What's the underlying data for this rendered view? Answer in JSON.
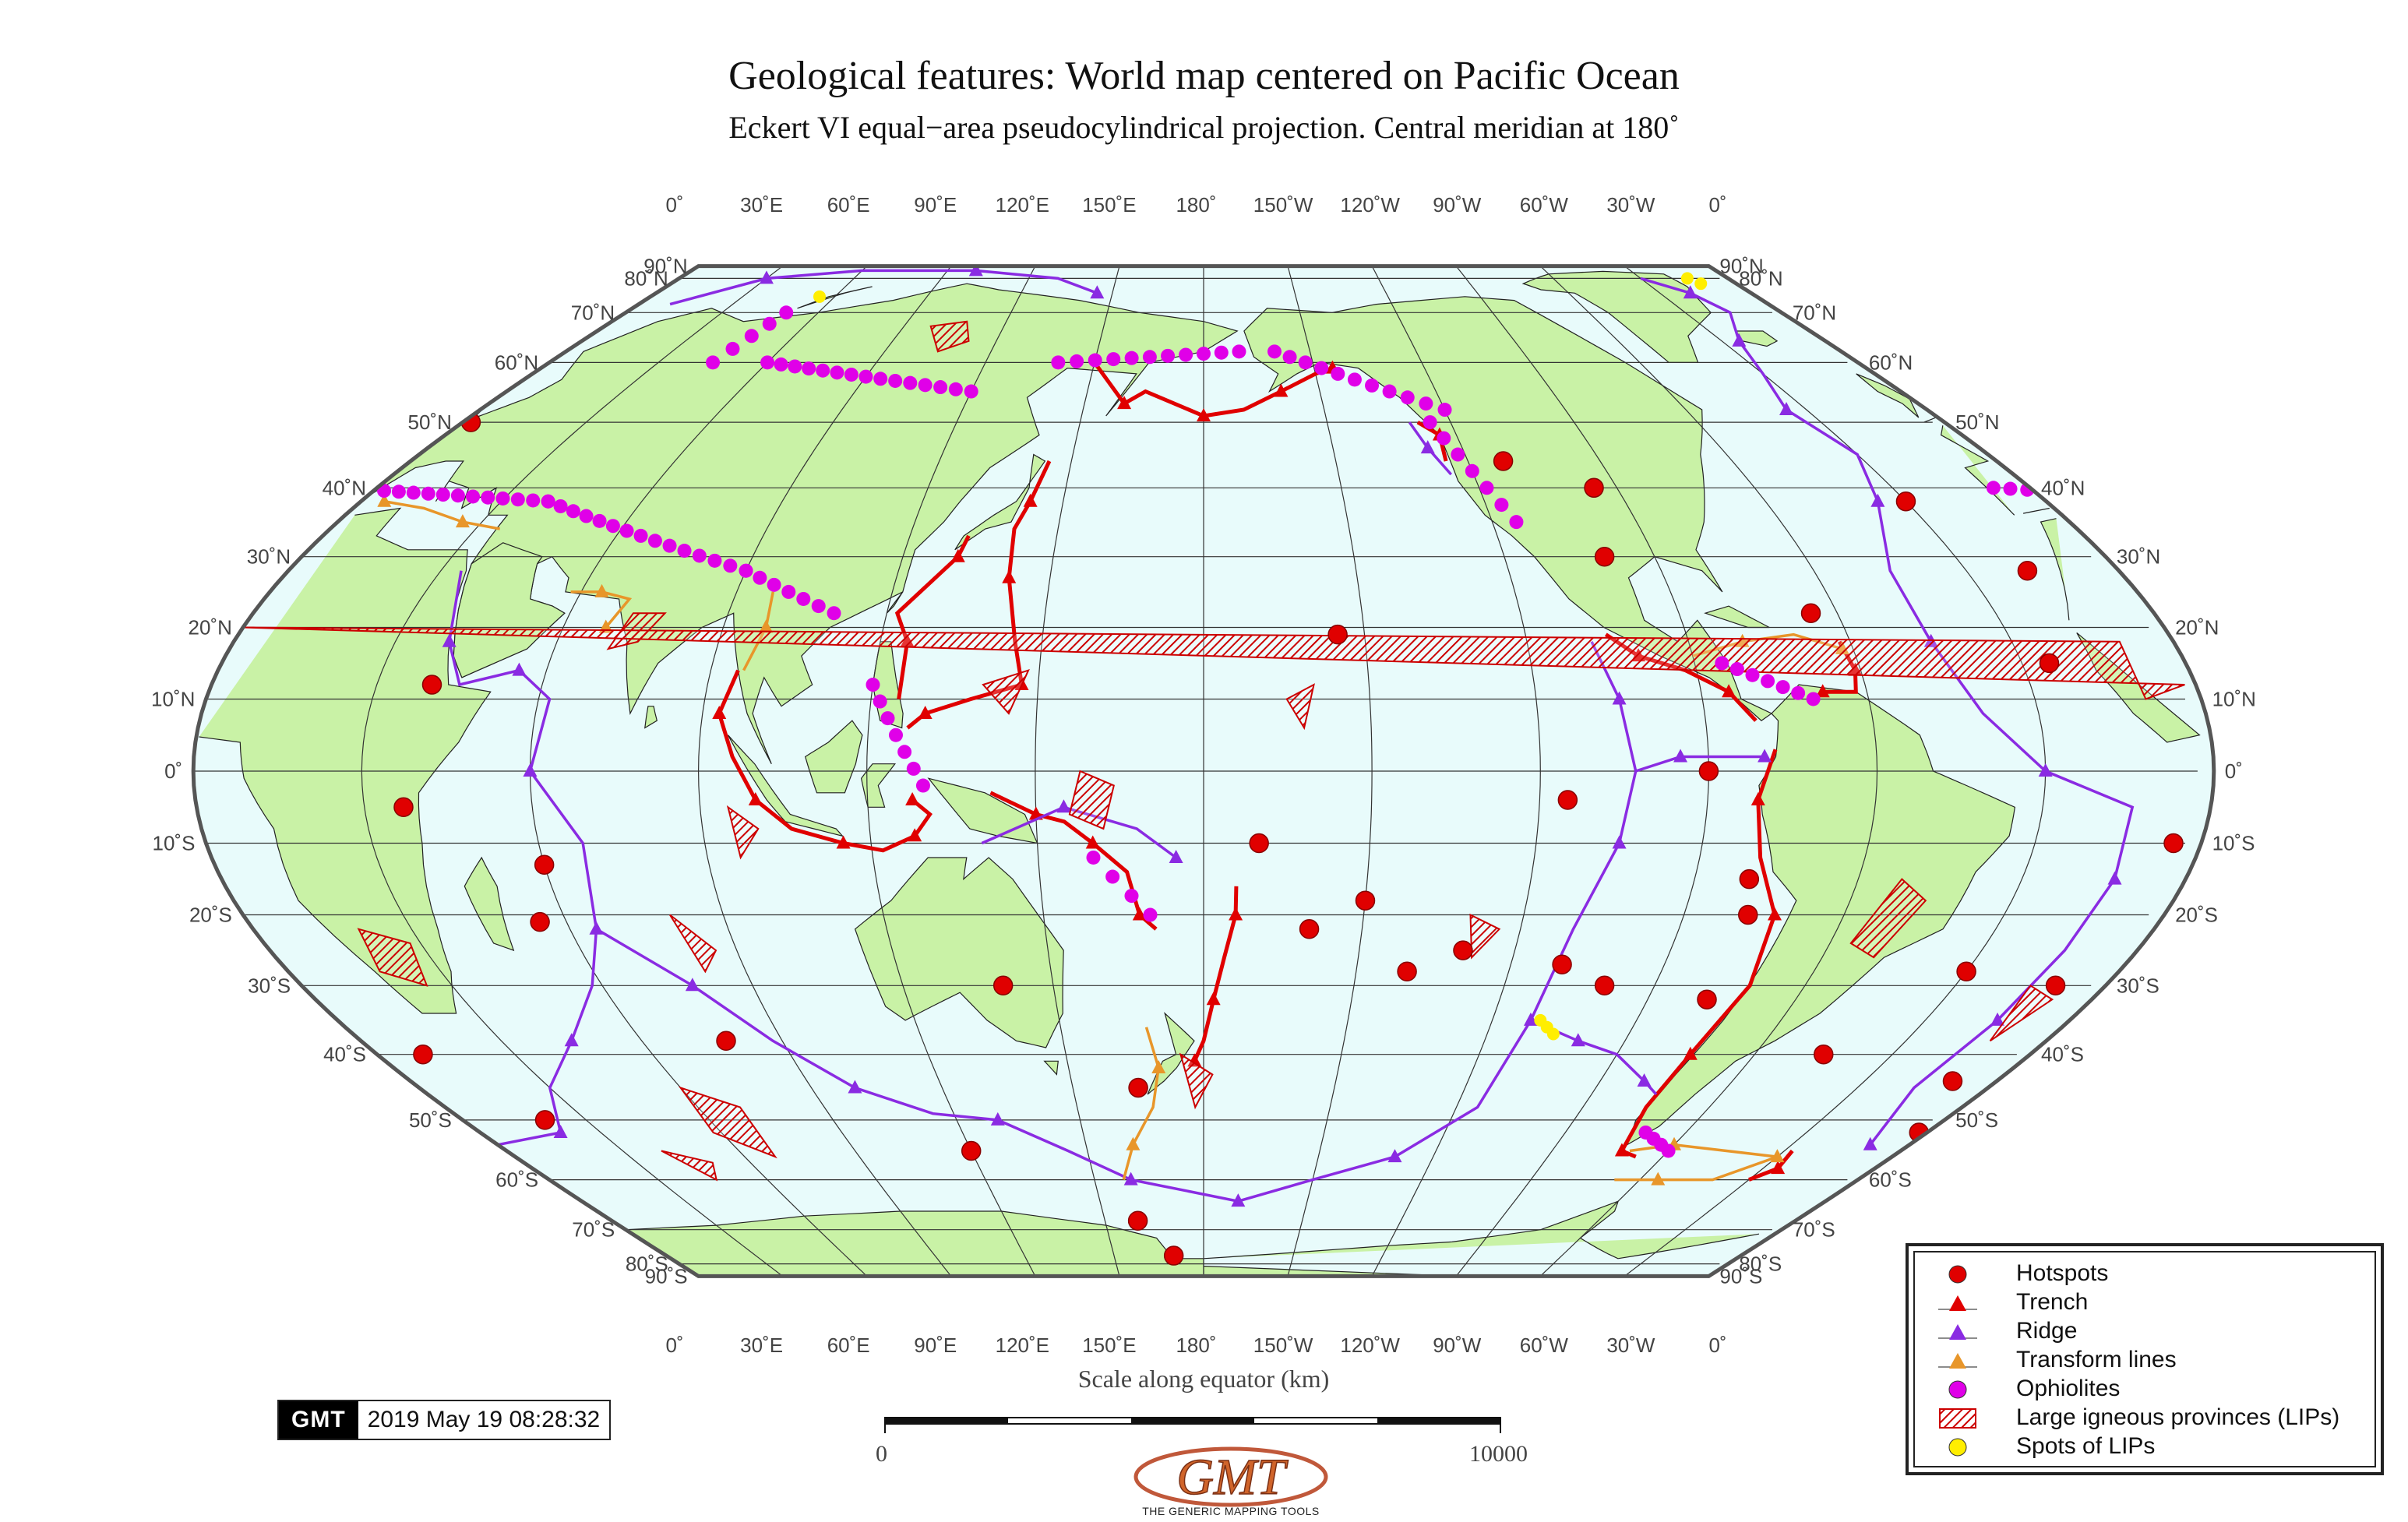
{
  "title": "Geological features: World map centered on Pacific Ocean",
  "subtitle": "Eckert VI equal−area pseudocylindrical projection. Central meridian at 180˚",
  "map": {
    "projection": "Eckert VI",
    "central_meridian": 180,
    "colors": {
      "ocean": "#e8fbfb",
      "land": "#c9f2a6",
      "coast": "#222222",
      "border": "#555555",
      "grid": "#333333",
      "hotspot": "#e00000",
      "trench": "#e00000",
      "ridge": "#8a2be2",
      "transform": "#e8962a",
      "ophiolite": "#e000e8",
      "lip": "#cc0000",
      "lip_spot": "#ffee00"
    },
    "lon_labels": [
      "0˚",
      "30˚E",
      "60˚E",
      "90˚E",
      "120˚E",
      "150˚E",
      "180˚",
      "150˚W",
      "120˚W",
      "90˚W",
      "60˚W",
      "30˚W",
      "0˚"
    ],
    "lat_labels_north": [
      "90˚N",
      "80˚N",
      "70˚N",
      "60˚N",
      "50˚N",
      "40˚N",
      "30˚N",
      "20˚N",
      "10˚N"
    ],
    "lat_label_equator": "0˚",
    "lat_labels_south": [
      "10˚S",
      "20˚S",
      "30˚S",
      "40˚S",
      "50˚S",
      "60˚S",
      "70˚S",
      "80˚S",
      "90˚S"
    ]
  },
  "legend": {
    "items": [
      {
        "label": "Hotspots",
        "symbol": "circle",
        "color": "#e00000"
      },
      {
        "label": "Trench",
        "symbol": "triangle",
        "color": "#e00000"
      },
      {
        "label": "Ridge",
        "symbol": "triangle",
        "color": "#8a2be2"
      },
      {
        "label": "Transform lines",
        "symbol": "triangle",
        "color": "#e8962a"
      },
      {
        "label": "Ophiolites",
        "symbol": "circle",
        "color": "#e000e8"
      },
      {
        "label": "Large igneous provinces (LIPs)",
        "symbol": "hatch",
        "color": "#cc0000"
      },
      {
        "label": "Spots of LIPs",
        "symbol": "circle",
        "color": "#ffee00"
      }
    ]
  },
  "scale": {
    "label": "Scale along equator (km)",
    "start": "0",
    "end": "10000"
  },
  "timestamp": {
    "logo": "GMT",
    "text": "2019 May 19 08:28:32"
  },
  "logo": {
    "text": "GMT",
    "tagline": "THE GENERIC MAPPING TOOLS"
  }
}
